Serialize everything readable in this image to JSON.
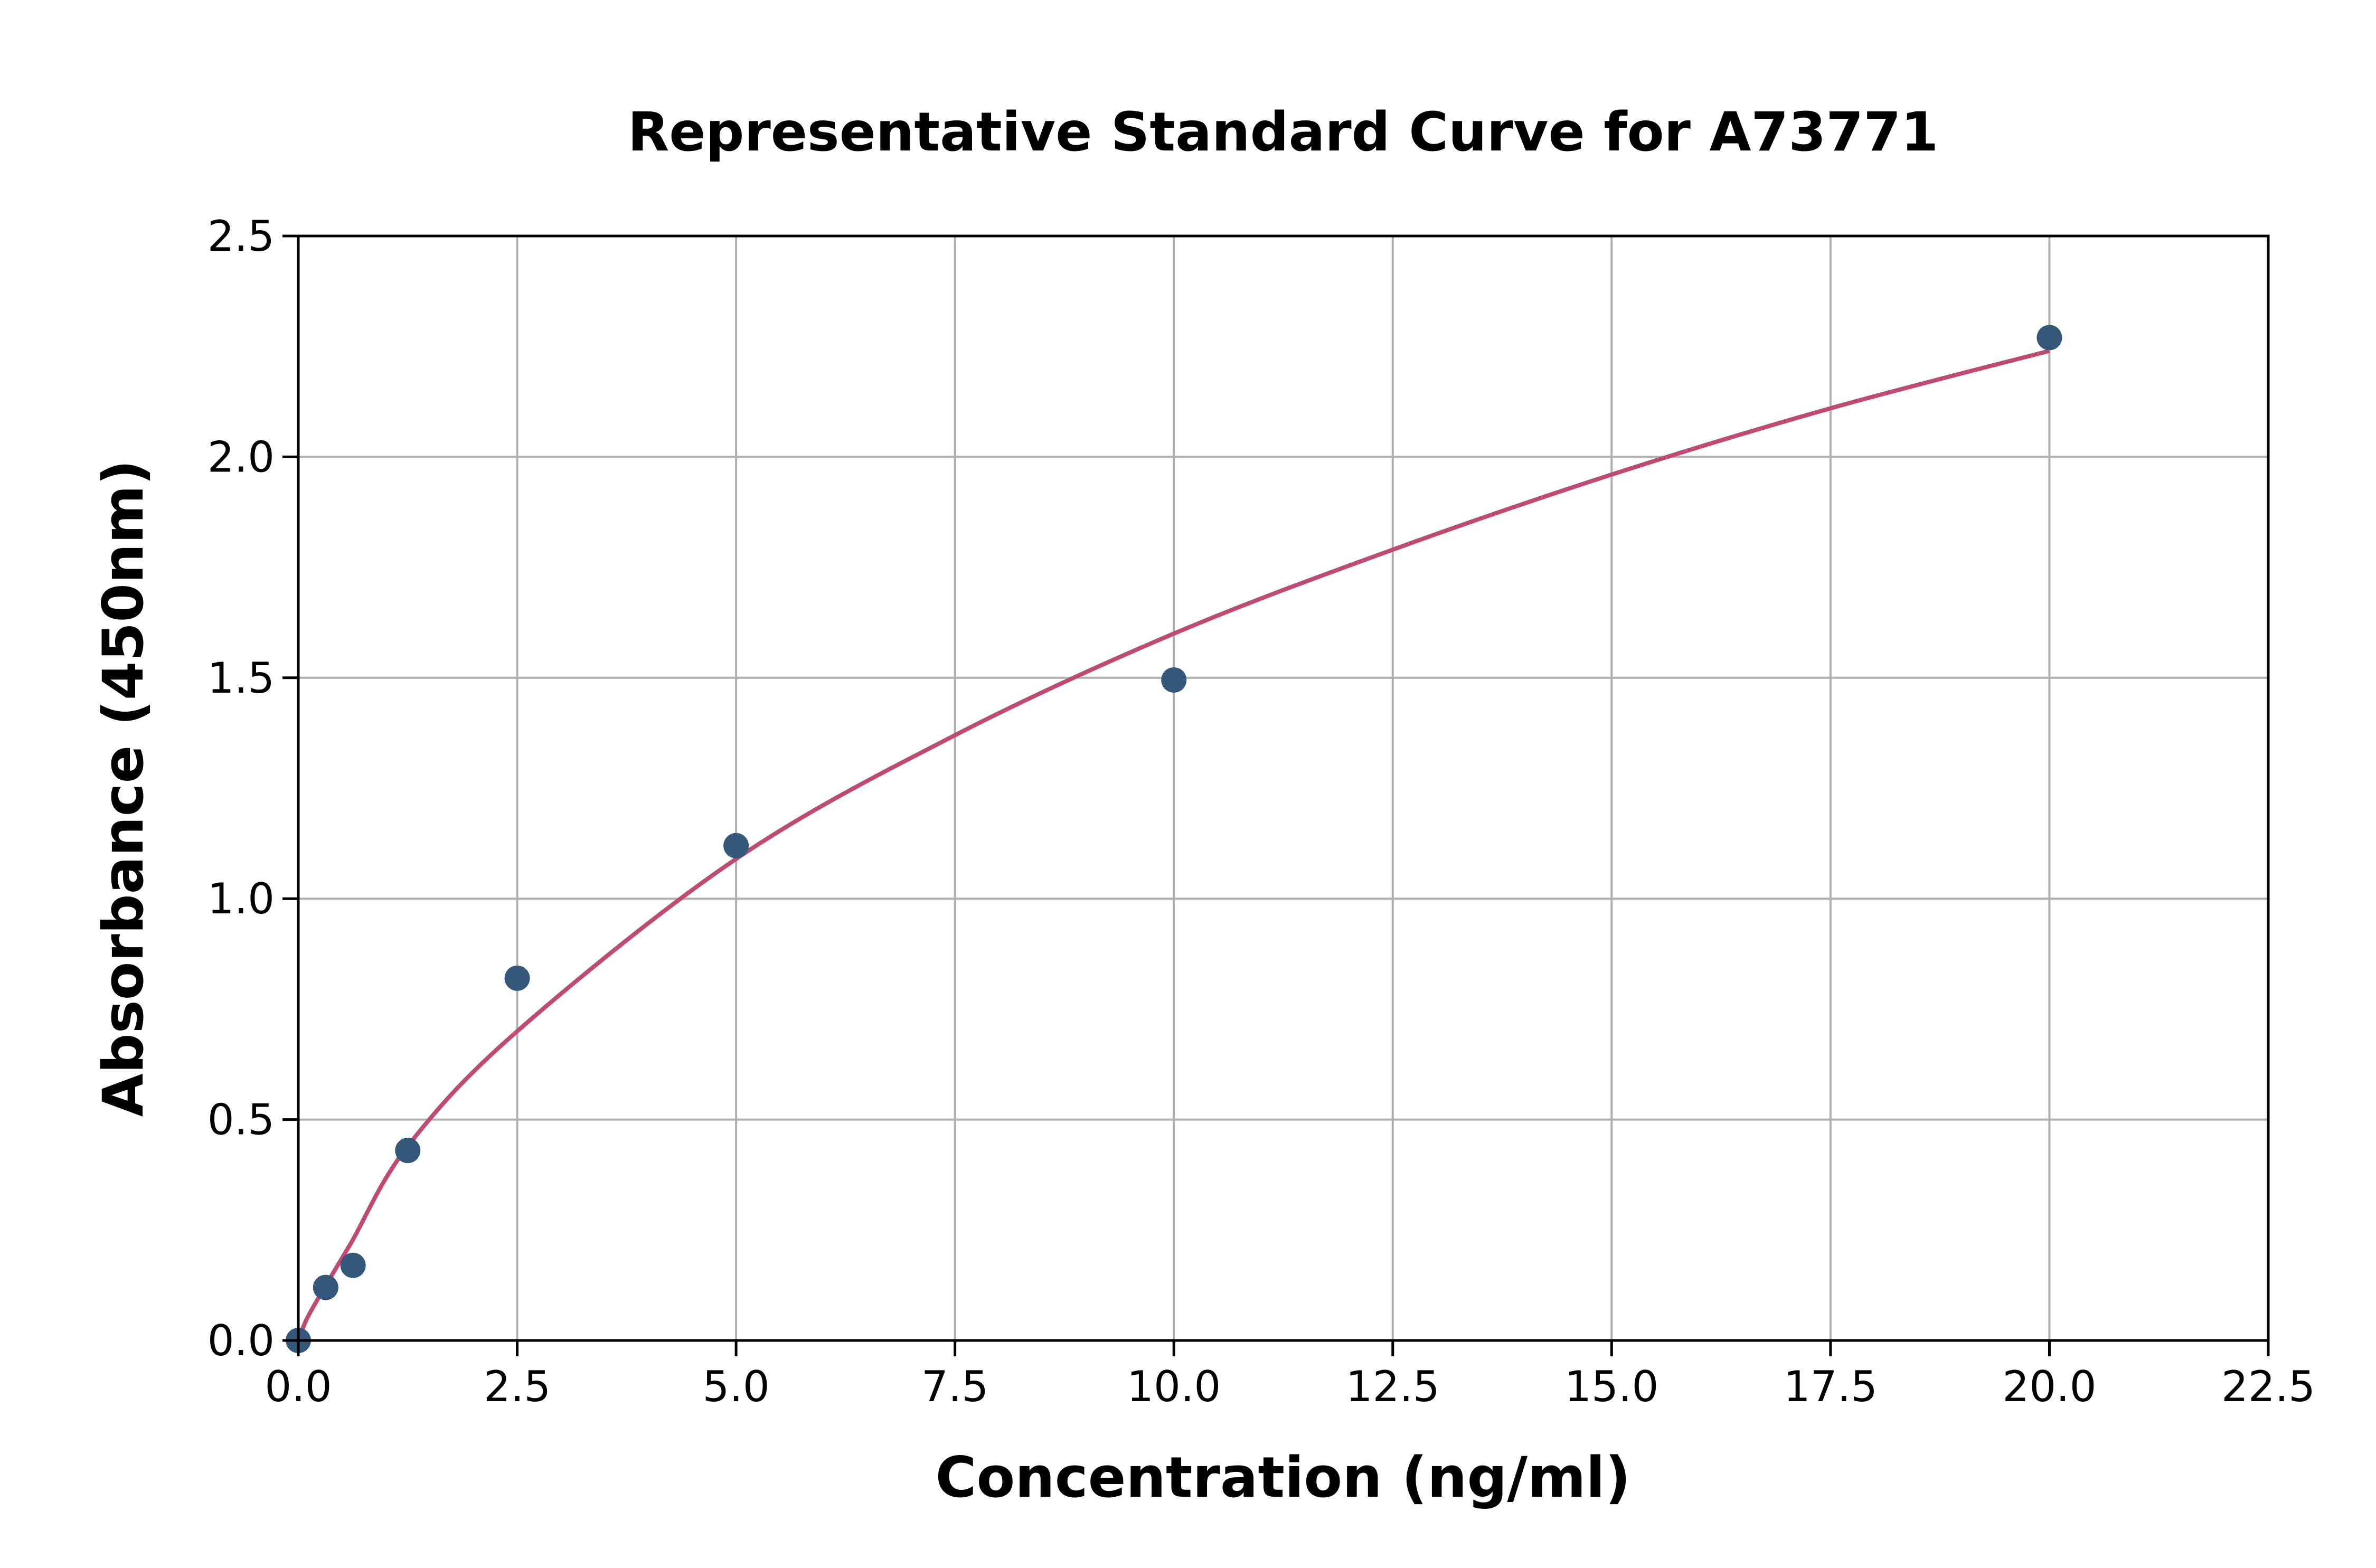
{
  "chart_data": {
    "type": "scatter",
    "title": "Representative Standard Curve for A73771",
    "xlabel": "Concentration (ng/ml)",
    "ylabel": "Absorbance (450nm)",
    "xlim": [
      0,
      22.5
    ],
    "ylim": [
      0,
      2.5
    ],
    "xticks": [
      "0.0",
      "2.5",
      "5.0",
      "7.5",
      "10.0",
      "12.5",
      "15.0",
      "17.5",
      "20.0",
      "22.5"
    ],
    "yticks": [
      "0.0",
      "0.5",
      "1.0",
      "1.5",
      "2.0",
      "2.5"
    ],
    "grid": true,
    "points": {
      "x": [
        0,
        0.3125,
        0.625,
        1.25,
        2.5,
        5,
        10,
        20
      ],
      "y": [
        0,
        0.12,
        0.17,
        0.43,
        0.82,
        1.12,
        1.495,
        2.27
      ]
    },
    "fit_curve": {
      "x": [
        0,
        0.1,
        0.3,
        0.6,
        1.25,
        2.5,
        5,
        7.5,
        10,
        12.5,
        15,
        17.5,
        20
      ],
      "y": [
        0,
        0.05,
        0.12,
        0.22,
        0.44,
        0.7,
        1.09,
        1.37,
        1.6,
        1.79,
        1.96,
        2.11,
        2.24
      ]
    },
    "colors": {
      "points": "#34577a",
      "curve": "#c04a70",
      "grid": "#b0b0b0"
    }
  }
}
